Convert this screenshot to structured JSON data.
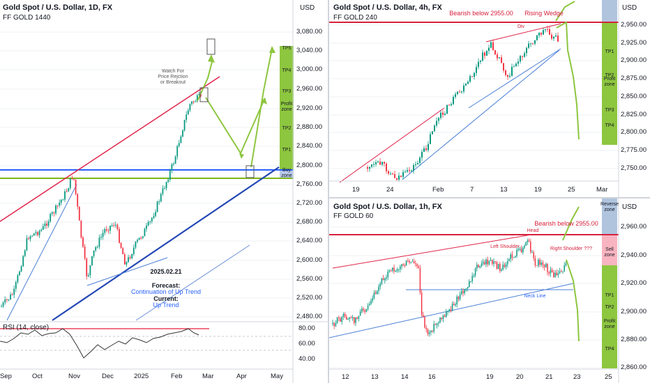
{
  "left": {
    "title": "Gold Spot / U.S. Dollar, 1D, FX",
    "subtitle": "FF GOLD 1440",
    "currency": "USD",
    "y_ticks": [
      "3,080.00",
      "3,040.00",
      "3,000.00",
      "2,960.00",
      "2,920.00",
      "2,880.00",
      "2,840.00",
      "2,800.00",
      "2,760.00",
      "2,720.00",
      "2,680.00",
      "2,640.00",
      "2,600.00",
      "2,560.00",
      "2,520.00",
      "2,480.00"
    ],
    "x_ticks": [
      "Sep",
      "Oct",
      "Nov",
      "Dec",
      "2025",
      "Feb",
      "Mar",
      "Apr",
      "May"
    ],
    "zones": [
      "TP5",
      "TP4",
      "TP3",
      "Profit zone",
      "TP2",
      "TP1",
      "Buy zone"
    ],
    "watch_note_1": "Watch For",
    "watch_note_2": "Price Rejction",
    "watch_note_3": "or Breakout",
    "date": "2025.02.21",
    "forecast_label": "Forecast:",
    "forecast_value": "Continuation of Up Trend",
    "current_label": "Current:",
    "current_value": "Up Trend",
    "rsi_label": "RSI (14, close)",
    "rsi_ticks": [
      "80.00",
      "60.00",
      "40.00"
    ]
  },
  "top_right": {
    "title": "Gold Spot / U.S. Dollar, 4h, FX",
    "subtitle": "FF GOLD 240",
    "currency": "USD",
    "bearish_note": "Bearish below 2955.00",
    "wedge_note": "Rising Wedge",
    "div_note": "Div",
    "y_ticks": [
      "2,950.00",
      "2,925.00",
      "2,900.00",
      "2,875.00",
      "2,850.00",
      "2,825.00",
      "2,800.00",
      "2,775.00",
      "2,750.00"
    ],
    "x_ticks": [
      "19",
      "24",
      "Feb",
      "7",
      "13",
      "19",
      "25",
      "Mar"
    ],
    "zones": [
      "TP1",
      "TP2",
      "Profit zone",
      "TP3",
      "TP4"
    ]
  },
  "bottom_right": {
    "title": "Gold Spot / U.S. Dollar, 1h, FX",
    "subtitle": "FF GOLD 60",
    "currency": "USD",
    "bearish_note": "Bearish below 2955.00",
    "head_note": "Head",
    "left_shoulder": "Left Shoulder",
    "right_shoulder": "Right Shoulder ???",
    "neck_line": "Neck Line",
    "y_ticks": [
      "2,960.00",
      "2,940.00",
      "2,920.00",
      "2,900.00",
      "2,880.00",
      "2,860.00"
    ],
    "x_ticks": [
      "12",
      "13",
      "14",
      "16",
      "19",
      "20",
      "21",
      "23",
      "25"
    ],
    "zones": [
      "Reverse zone",
      "Sell zone",
      "TP1",
      "TP2",
      "Profit zone",
      "TP4"
    ]
  }
}
